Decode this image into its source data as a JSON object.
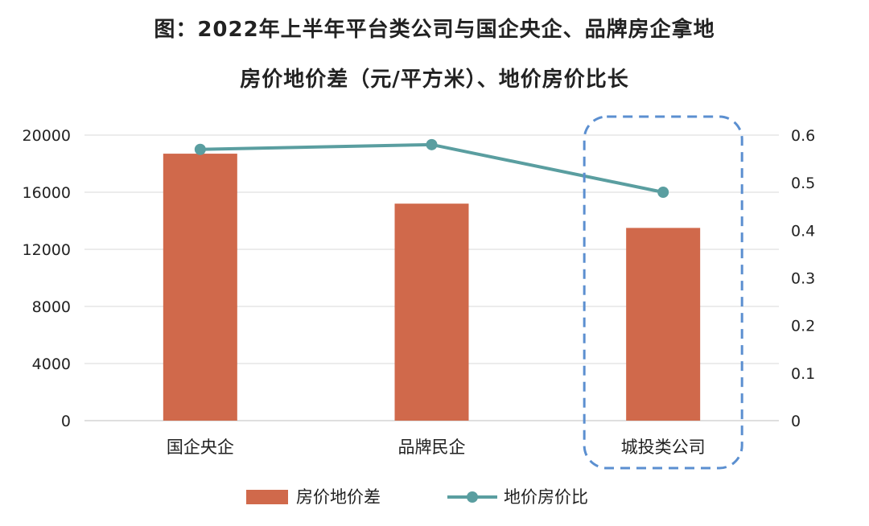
{
  "chart_data": {
    "type": "bar",
    "title_line1": "图：2022年上半年平台类公司与国企央企、品牌房企拿地",
    "title_line2": "房价地价差（元/平方米）、地价房价比长",
    "categories": [
      "国企央企",
      "品牌民企",
      "城投类公司"
    ],
    "series": [
      {
        "name": "房价地价差",
        "type": "bar",
        "axis": "left",
        "color": "#d0694b",
        "values": [
          18700,
          15200,
          13500
        ]
      },
      {
        "name": "地价房价比",
        "type": "line",
        "axis": "right",
        "color": "#5a9ea0",
        "values": [
          0.57,
          0.58,
          0.48
        ]
      }
    ],
    "y_left": {
      "ylim": [
        0,
        20000
      ],
      "ticks": [
        0,
        4000,
        8000,
        12000,
        16000,
        20000
      ]
    },
    "y_right": {
      "ylim": [
        0,
        0.6
      ],
      "ticks": [
        "0",
        "0.1",
        "0.2",
        "0.3",
        "0.4",
        "0.5",
        "0.6"
      ]
    },
    "grid": true,
    "legend": "bottom",
    "highlight_category": "城投类公司",
    "highlight_color": "#5b8fd0"
  }
}
